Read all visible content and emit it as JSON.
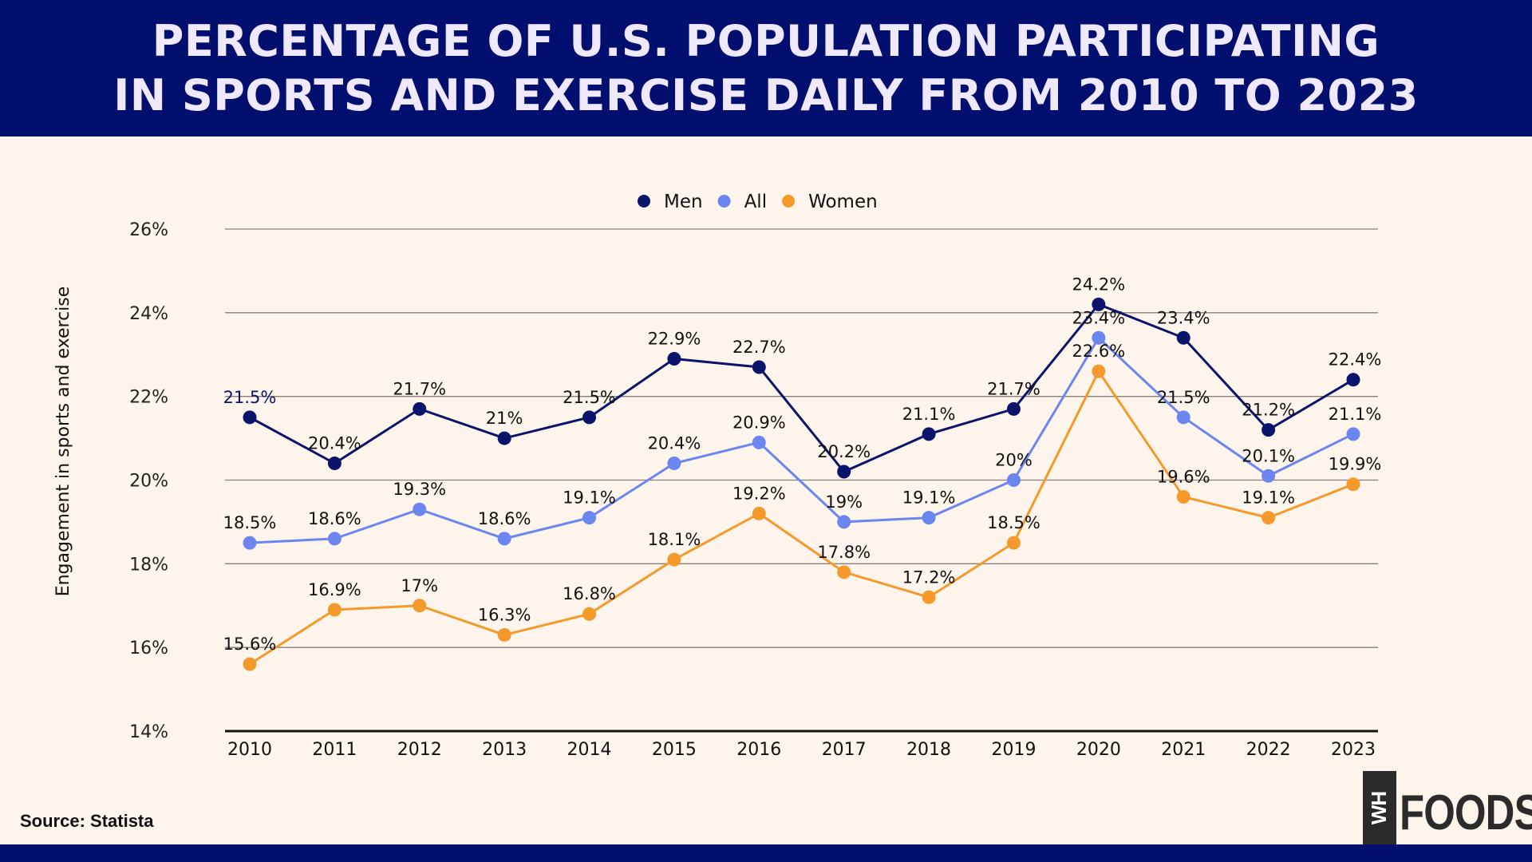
{
  "header": {
    "title_line1": "PERCENTAGE OF U.S. POPULATION PARTICIPATING",
    "title_line2": "IN SPORTS AND EXERCISE DAILY FROM 2010 TO 2023"
  },
  "footer": {
    "source": "Source: Statista",
    "logo_box": "WH",
    "logo_text": "FOODS"
  },
  "colors": {
    "header_bg": "#020f6e",
    "background": "#fdf4ec",
    "men": "#0a146b",
    "all": "#6b86f0",
    "women": "#f59a2a"
  },
  "chart_data": {
    "type": "line",
    "title": "PERCENTAGE OF U.S. POPULATION PARTICIPATING IN SPORTS AND EXERCISE DAILY FROM 2010 TO 2023",
    "xlabel": "",
    "ylabel": "Engagement in sports and exercise",
    "ylim": [
      14,
      26
    ],
    "yticks": [
      "14%",
      "16%",
      "18%",
      "20%",
      "22%",
      "24%",
      "26%"
    ],
    "ytick_values": [
      14,
      16,
      18,
      20,
      22,
      24,
      26
    ],
    "grid": true,
    "legend_position": "top-center",
    "categories": [
      "2010",
      "2011",
      "2012",
      "2013",
      "2014",
      "2015",
      "2016",
      "2017",
      "2018",
      "2019",
      "2020",
      "2021",
      "2022",
      "2023"
    ],
    "series": [
      {
        "name": "Men",
        "color": "#0a146b",
        "values": [
          21.5,
          20.4,
          21.7,
          21,
          21.5,
          22.9,
          22.7,
          20.2,
          21.1,
          21.7,
          24.2,
          23.4,
          21.2,
          22.4
        ],
        "labels": [
          "21.5%",
          "20.4%",
          "21.7%",
          "21%",
          "21.5%",
          "22.9%",
          "22.7%",
          "20.2%",
          "21.1%",
          "21.7%",
          "24.2%",
          "23.4%",
          "21.2%",
          "22.4%"
        ]
      },
      {
        "name": "All",
        "color": "#6b86f0",
        "values": [
          18.5,
          18.6,
          19.3,
          18.6,
          19.1,
          20.4,
          20.9,
          19,
          19.1,
          20,
          23.4,
          21.5,
          20.1,
          21.1
        ],
        "labels": [
          "18.5%",
          "18.6%",
          "19.3%",
          "18.6%",
          "19.1%",
          "20.4%",
          "20.9%",
          "19%",
          "19.1%",
          "20%",
          "23.4%",
          "21.5%",
          "20.1%",
          "21.1%"
        ]
      },
      {
        "name": "Women",
        "color": "#f59a2a",
        "values": [
          15.6,
          16.9,
          17,
          16.3,
          16.8,
          18.1,
          19.2,
          17.8,
          17.2,
          18.5,
          22.6,
          19.6,
          19.1,
          19.9
        ],
        "labels": [
          "15.6%",
          "16.9%",
          "17%",
          "16.3%",
          "16.8%",
          "18.1%",
          "19.2%",
          "17.8%",
          "17.2%",
          "18.5%",
          "22.6%",
          "19.6%",
          "19.1%",
          "19.9%"
        ]
      }
    ]
  }
}
